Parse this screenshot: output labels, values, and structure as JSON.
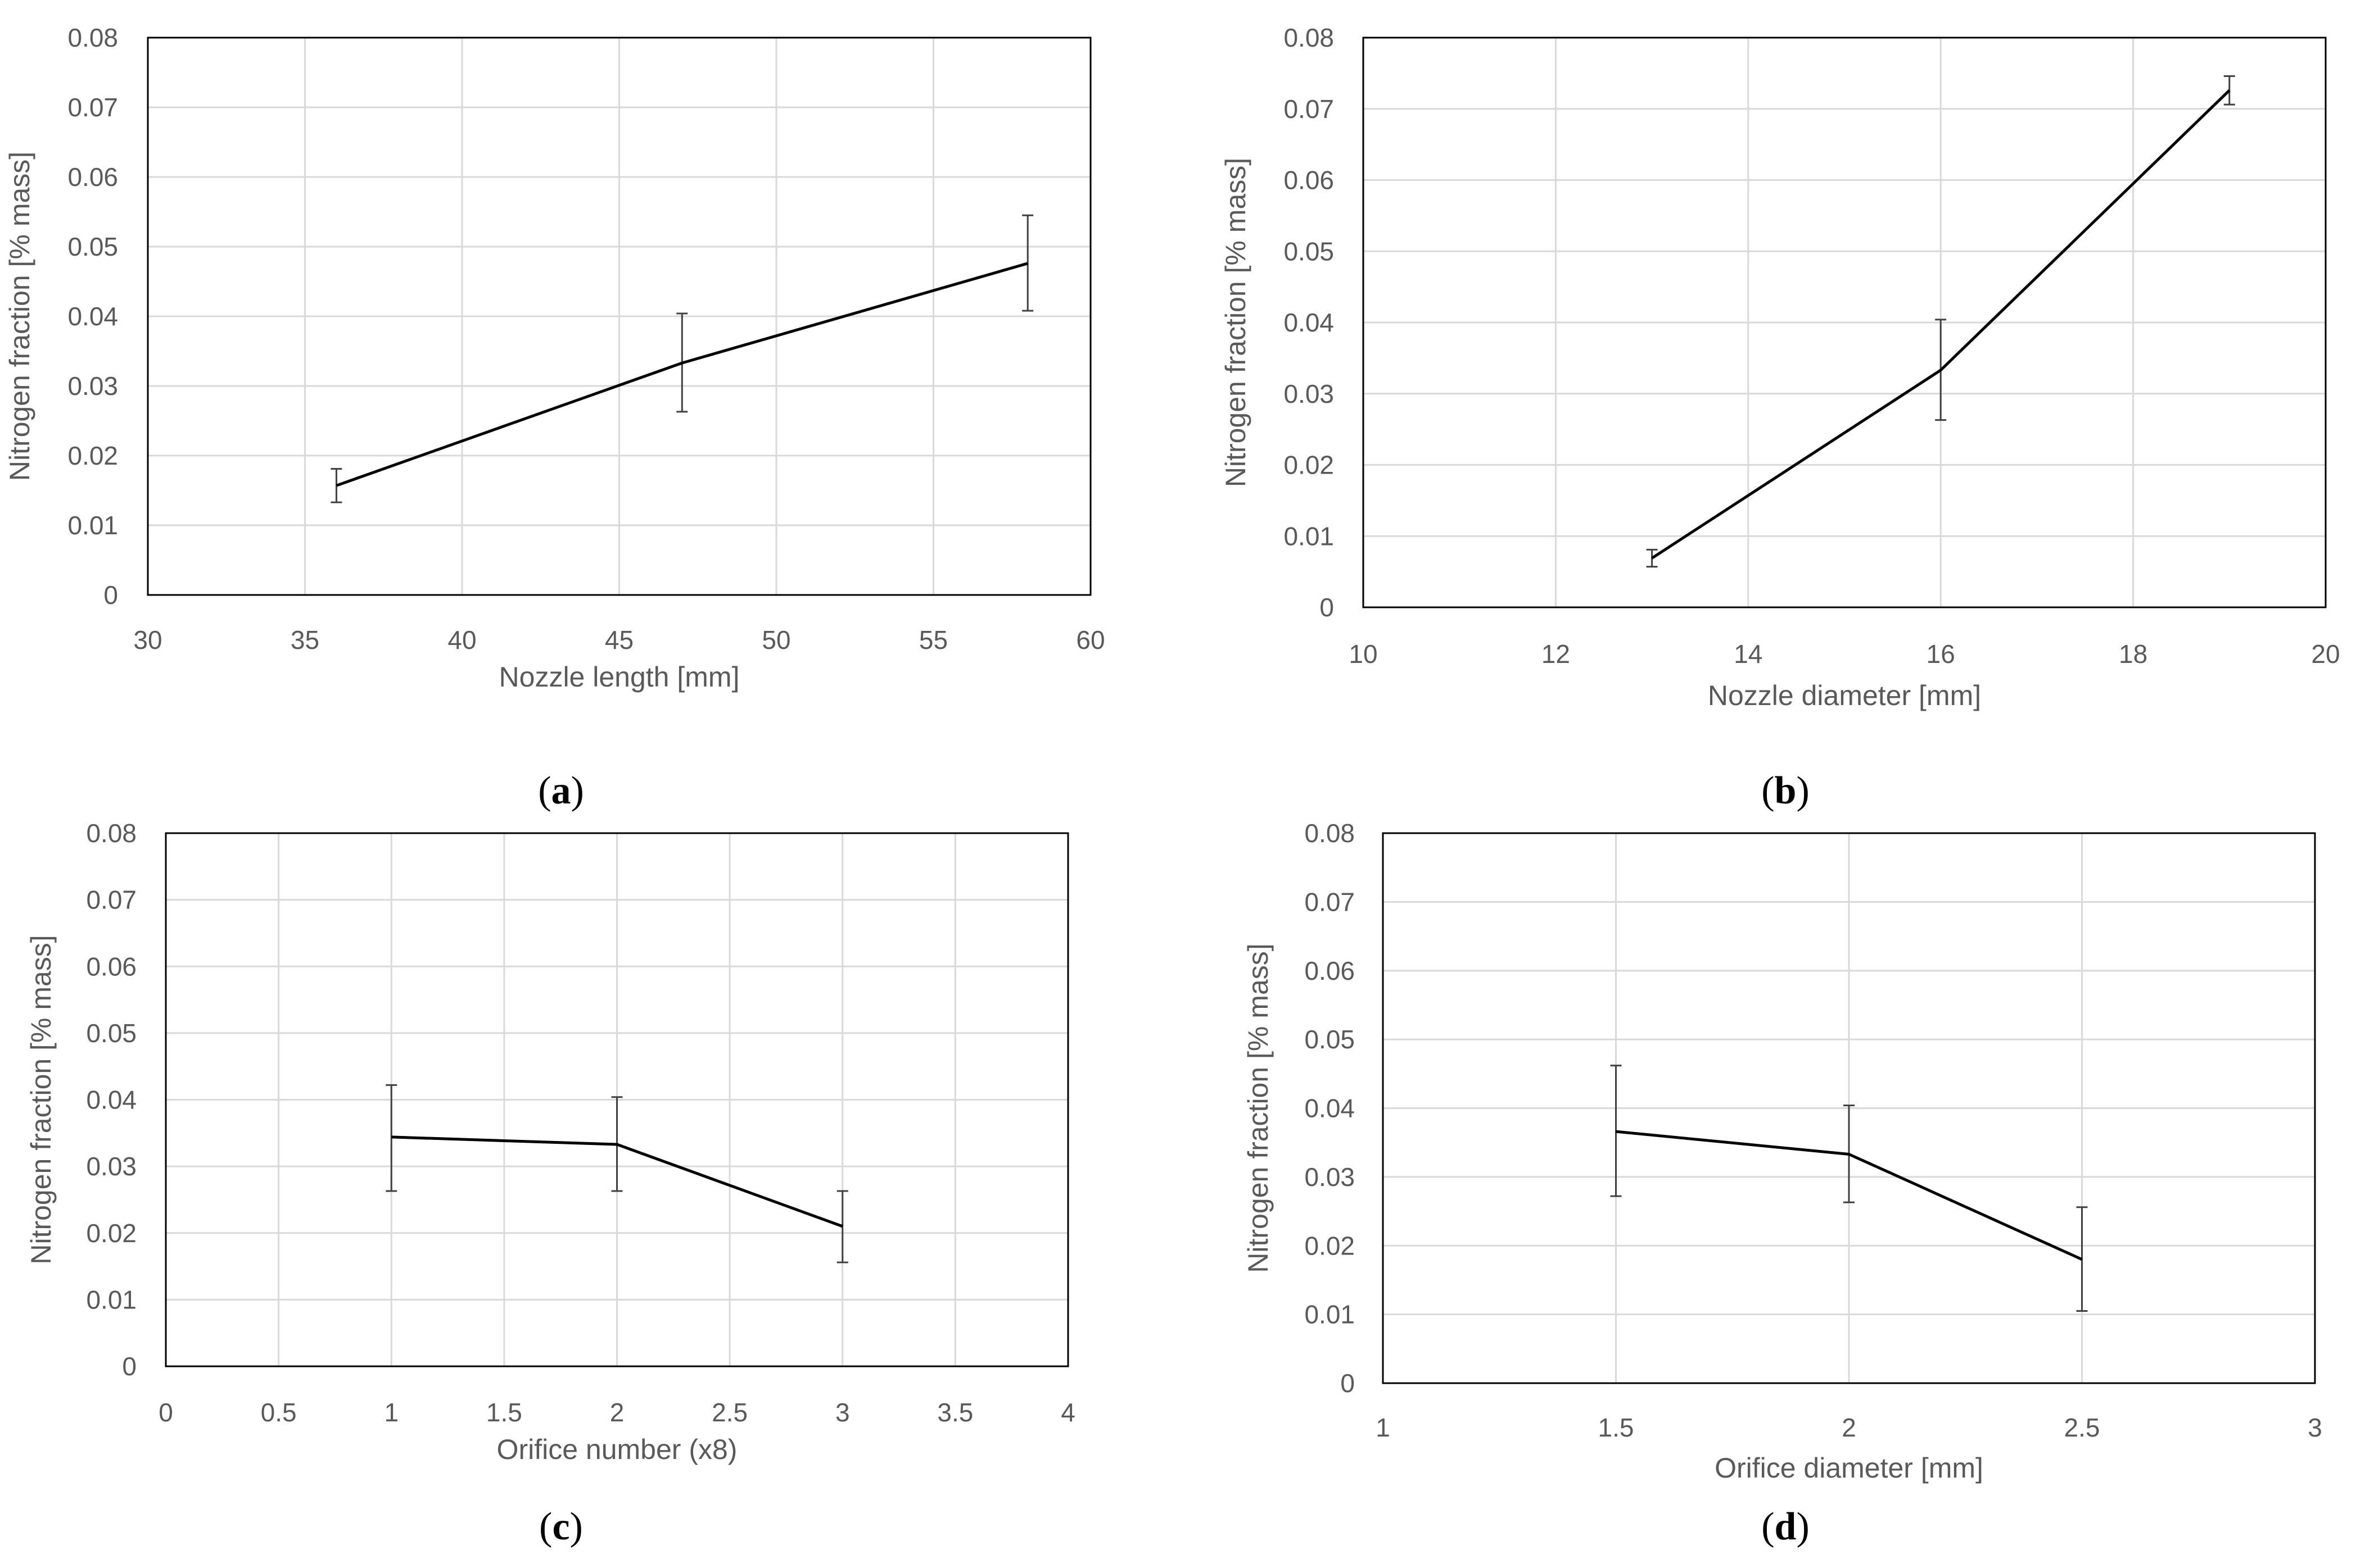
{
  "chart_data": [
    {
      "type": "line",
      "caption_letter": "a",
      "xlabel": "Nozzle length [mm]",
      "ylabel": "Nitrogen fraction [% mass]",
      "xlim": [
        30,
        60
      ],
      "ylim": [
        0,
        0.08
      ],
      "xticks": [
        "30",
        "35",
        "40",
        "45",
        "50",
        "55",
        "60"
      ],
      "yticks": [
        "0",
        "0.01",
        "0.02",
        "0.03",
        "0.04",
        "0.05",
        "0.06",
        "0.07",
        "0.08"
      ],
      "x": [
        36,
        47,
        58
      ],
      "y": [
        0.0157,
        0.0333,
        0.0476
      ],
      "err_low": [
        0.0133,
        0.0263,
        0.0408
      ],
      "err_high": [
        0.0181,
        0.0404,
        0.0545
      ],
      "grid": true,
      "line_color": "#000000",
      "grid_color": "#d9d9d9"
    },
    {
      "type": "line",
      "caption_letter": "b",
      "xlabel": "Nozzle diameter [mm]",
      "ylabel": "Nitrogen fraction [% mass]",
      "xlim": [
        10,
        20
      ],
      "ylim": [
        0,
        0.08
      ],
      "xticks": [
        "10",
        "12",
        "14",
        "16",
        "18",
        "20"
      ],
      "yticks": [
        "0",
        "0.01",
        "0.02",
        "0.03",
        "0.04",
        "0.05",
        "0.06",
        "0.07",
        "0.08"
      ],
      "x": [
        13,
        16,
        19
      ],
      "y": [
        0.0069,
        0.0333,
        0.0726
      ],
      "err_low": [
        0.0057,
        0.0263,
        0.0706
      ],
      "err_high": [
        0.0081,
        0.0404,
        0.0746
      ],
      "grid": true,
      "line_color": "#000000",
      "grid_color": "#d9d9d9"
    },
    {
      "type": "line",
      "caption_letter": "c",
      "xlabel": "Orifice number (x8)",
      "ylabel": "Nitrogen fraction [% mass]",
      "xlim": [
        0,
        4
      ],
      "ylim": [
        0,
        0.08
      ],
      "xticks": [
        "0",
        "0.5",
        "1",
        "1.5",
        "2",
        "2.5",
        "3",
        "3.5",
        "4"
      ],
      "yticks": [
        "0",
        "0.01",
        "0.02",
        "0.03",
        "0.04",
        "0.05",
        "0.06",
        "0.07",
        "0.08"
      ],
      "x": [
        1,
        2,
        3
      ],
      "y": [
        0.0344,
        0.0333,
        0.021
      ],
      "err_low": [
        0.0263,
        0.0263,
        0.0156
      ],
      "err_high": [
        0.0422,
        0.0404,
        0.0263
      ],
      "grid": true,
      "line_color": "#000000",
      "grid_color": "#d9d9d9"
    },
    {
      "type": "line",
      "caption_letter": "d",
      "xlabel": "Orifice diameter [mm]",
      "ylabel": "Nitrogen fraction [% mass]",
      "xlim": [
        1,
        3
      ],
      "ylim": [
        0,
        0.08
      ],
      "xticks": [
        "1",
        "1.5",
        "2",
        "2.5",
        "3"
      ],
      "yticks": [
        "0",
        "0.01",
        "0.02",
        "0.03",
        "0.04",
        "0.05",
        "0.06",
        "0.07",
        "0.08"
      ],
      "x": [
        1.5,
        2,
        2.5
      ],
      "y": [
        0.0366,
        0.0333,
        0.018
      ],
      "err_low": [
        0.0272,
        0.0263,
        0.0105
      ],
      "err_high": [
        0.0462,
        0.0404,
        0.0256
      ],
      "grid": true,
      "line_color": "#000000",
      "grid_color": "#d9d9d9"
    }
  ]
}
